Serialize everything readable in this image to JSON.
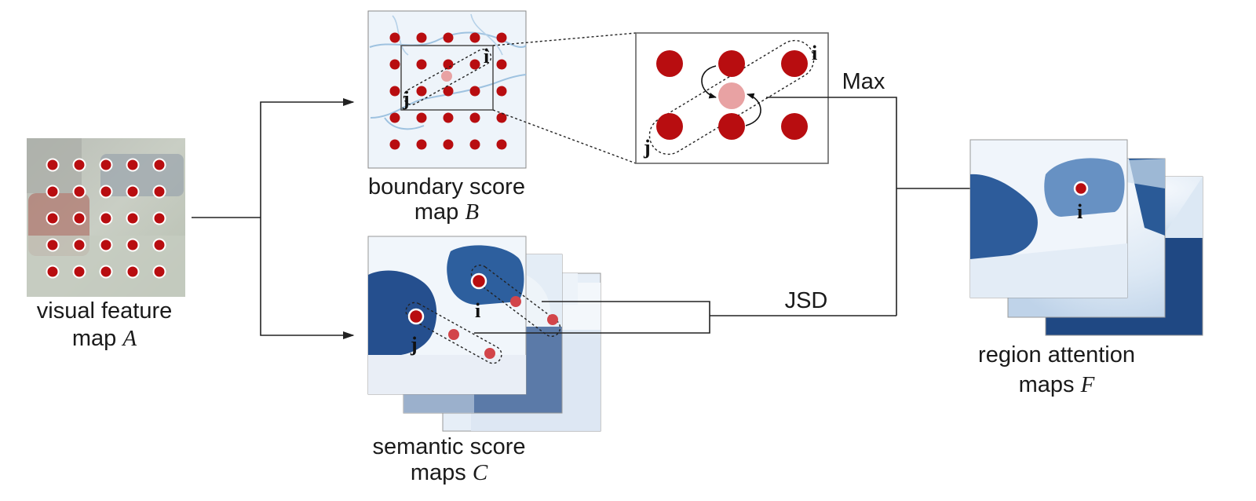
{
  "labels": {
    "visual_feature_line1": "visual feature",
    "visual_feature_line2_text": "map ",
    "visual_feature_symbol": "A",
    "boundary_line1": "boundary score",
    "boundary_line2_text": "map ",
    "boundary_symbol": "B",
    "semantic_line1": "semantic score",
    "semantic_line2_text": "maps ",
    "semantic_symbol": "C",
    "region_line1": "region attention",
    "region_line2_text": "maps ",
    "region_symbol": "F",
    "max_op": "Max",
    "jsd_op": "JSD",
    "index_i": "i",
    "index_j": "j"
  },
  "colors": {
    "dot_dark_red": "#b80d10",
    "dot_light_red": "#e8a2a3",
    "semantic_dot": "#d2454a",
    "map_blue_dark": "#234f8e",
    "map_blue_light": "#eaf2fa",
    "feature_bg": "#c7cdc2"
  },
  "dot_grid": {
    "rows": 5,
    "cols": 5
  }
}
